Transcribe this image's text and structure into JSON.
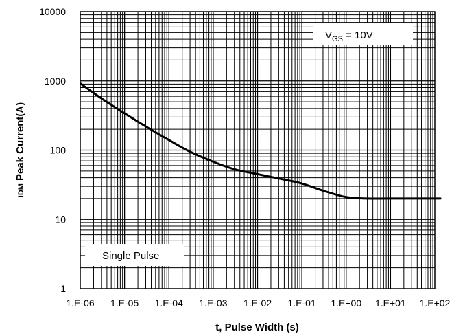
{
  "chart_data": {
    "type": "line",
    "xscale": "log",
    "yscale": "log",
    "xlim": [
      1e-06,
      100
    ],
    "ylim": [
      1,
      10000
    ],
    "grid": true,
    "xlabel": "t, Pulse Width (s)",
    "ylabel": "Peak Current(A)",
    "ylabel_symbol": "IDM",
    "x_tick_labels": [
      "1.E-06",
      "1.E-05",
      "1.E-04",
      "1.E-03",
      "1.E-02",
      "1.E-01",
      "1.E+00",
      "1.E+01",
      "1.E+02"
    ],
    "y_tick_labels": [
      "1",
      "10",
      "100",
      "1000",
      "10000"
    ],
    "annotations": {
      "condition_symbol": "V",
      "condition_subscript": "GS",
      "condition_value": " = 10V",
      "pulse_label": "Single Pulse"
    },
    "series": [
      {
        "color": "#000000",
        "x": [
          1e-06,
          3e-06,
          1e-05,
          3e-05,
          0.0001,
          0.0003,
          0.001,
          0.003,
          0.01,
          0.03,
          0.1,
          0.3,
          1,
          3,
          10,
          100
        ],
        "y": [
          920,
          560,
          340,
          220,
          140,
          95,
          68,
          53,
          45,
          39,
          33,
          26,
          21,
          20,
          20,
          20
        ]
      }
    ]
  }
}
